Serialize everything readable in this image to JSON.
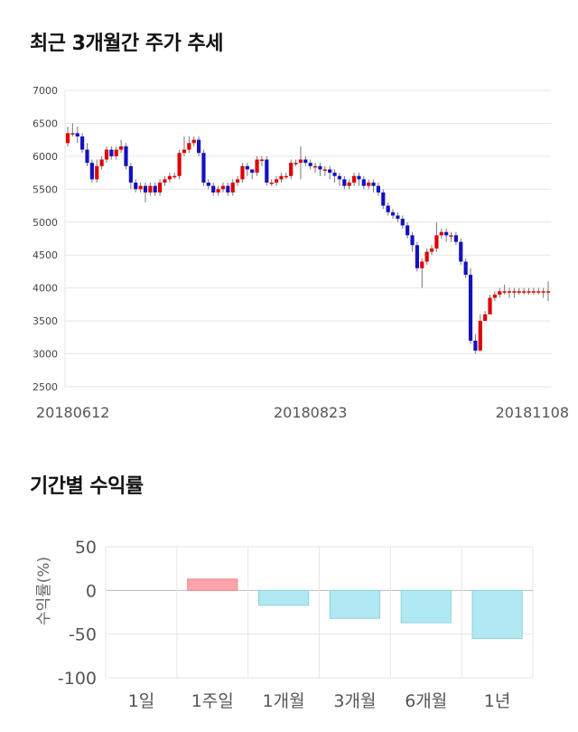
{
  "titles": {
    "price_trend": "최근 3개월간 주가 추세",
    "period_returns": "기간별 수익률"
  },
  "colors": {
    "up": "#e00000",
    "down": "#1212c0",
    "wick": "#777777",
    "positive_bar": "#ffa4a9",
    "negative_bar": "#b0e9f3",
    "grid": "#e6e6e6"
  },
  "chart_data": [
    {
      "type": "candlestick",
      "title": "",
      "ylim": [
        2500,
        7000
      ],
      "y_ticks": [
        "7000",
        "6500",
        "6000",
        "5500",
        "5000",
        "4500",
        "4000",
        "3500",
        "3000",
        "2500"
      ],
      "x_tick_labels": [
        {
          "index": 0,
          "label": "20180612"
        },
        {
          "index": 50,
          "label": "20180823"
        },
        {
          "index": 99,
          "label": "20181108"
        }
      ],
      "closes": [
        6350,
        6350,
        6300,
        6100,
        5900,
        5650,
        5850,
        5950,
        6100,
        6000,
        6100,
        6150,
        5850,
        5600,
        5500,
        5550,
        5450,
        5550,
        5450,
        5600,
        5650,
        5700,
        5700,
        6050,
        6100,
        6200,
        6250,
        6050,
        5600,
        5550,
        5450,
        5500,
        5550,
        5450,
        5600,
        5650,
        5850,
        5800,
        5750,
        5950,
        5950,
        5600,
        5600,
        5650,
        5700,
        5700,
        5900,
        5900,
        5950,
        5900,
        5850,
        5850,
        5800,
        5800,
        5750,
        5700,
        5650,
        5550,
        5600,
        5700,
        5650,
        5550,
        5600,
        5550,
        5450,
        5250,
        5150,
        5100,
        5050,
        4950,
        4800,
        4650,
        4300,
        4400,
        4550,
        4600,
        4800,
        4850,
        4800,
        4800,
        4700,
        4400,
        4200,
        3200,
        3050,
        3500,
        3600,
        3850,
        3900,
        3950,
        3950,
        3950,
        3950,
        3950,
        3950,
        3950,
        3950,
        3950,
        3950,
        3950
      ],
      "opens": [
        6200,
        6350,
        6350,
        6300,
        6100,
        5900,
        5650,
        5850,
        5950,
        6100,
        6000,
        6100,
        6150,
        5850,
        5600,
        5500,
        5550,
        5450,
        5550,
        5450,
        5600,
        5650,
        5700,
        5700,
        6050,
        6100,
        6200,
        6250,
        6050,
        5600,
        5550,
        5450,
        5500,
        5550,
        5450,
        5600,
        5650,
        5850,
        5800,
        5750,
        5950,
        5950,
        5600,
        5600,
        5650,
        5700,
        5700,
        5900,
        5900,
        5950,
        5900,
        5850,
        5850,
        5800,
        5800,
        5750,
        5700,
        5650,
        5550,
        5600,
        5700,
        5650,
        5550,
        5600,
        5550,
        5450,
        5250,
        5150,
        5100,
        5050,
        4950,
        4800,
        4650,
        4300,
        4400,
        4550,
        4600,
        4800,
        4850,
        4800,
        4800,
        4700,
        4400,
        4200,
        3200,
        3050,
        3500,
        3600,
        3850,
        3900,
        3950,
        3950,
        3950,
        3950,
        3950,
        3950,
        3950,
        3950,
        3950,
        3950
      ],
      "highs": [
        6450,
        6500,
        6450,
        6350,
        6200,
        5950,
        5950,
        6000,
        6150,
        6150,
        6150,
        6250,
        6200,
        5900,
        5650,
        5600,
        5600,
        5600,
        5600,
        5650,
        5700,
        5750,
        5750,
        6100,
        6300,
        6300,
        6300,
        6300,
        6100,
        5650,
        5600,
        5550,
        5600,
        5600,
        5650,
        5700,
        5900,
        5900,
        5800,
        6000,
        6000,
        6000,
        5650,
        5700,
        5750,
        5750,
        5950,
        5950,
        6150,
        6000,
        5950,
        5900,
        5900,
        5850,
        5850,
        5800,
        5750,
        5700,
        5650,
        5750,
        5750,
        5700,
        5650,
        5650,
        5600,
        5500,
        5300,
        5200,
        5150,
        5100,
        5000,
        4850,
        4700,
        4450,
        4600,
        4650,
        5000,
        4900,
        4900,
        4850,
        4850,
        4750,
        4450,
        4300,
        3300,
        3600,
        3650,
        3900,
        3950,
        4000,
        4050,
        4000,
        4000,
        4000,
        4000,
        4000,
        4000,
        4000,
        4000,
        4100
      ],
      "lows": [
        6150,
        6300,
        6200,
        6050,
        5850,
        5600,
        5600,
        5800,
        5900,
        5950,
        5950,
        6050,
        5800,
        5500,
        5450,
        5450,
        5300,
        5400,
        5400,
        5400,
        5550,
        5600,
        5650,
        5650,
        6000,
        6050,
        6150,
        6000,
        5550,
        5500,
        5400,
        5400,
        5450,
        5400,
        5400,
        5550,
        5600,
        5700,
        5650,
        5700,
        5850,
        5550,
        5550,
        5550,
        5600,
        5650,
        5650,
        5850,
        5650,
        5850,
        5800,
        5750,
        5700,
        5700,
        5650,
        5600,
        5550,
        5500,
        5500,
        5550,
        5550,
        5500,
        5500,
        5450,
        5400,
        5200,
        5100,
        5050,
        5000,
        4900,
        4750,
        4550,
        4250,
        4000,
        4350,
        4500,
        4550,
        4750,
        4700,
        4700,
        4650,
        4350,
        4150,
        3150,
        3000,
        3100,
        3500,
        3600,
        3800,
        3850,
        3900,
        3850,
        3850,
        3900,
        3900,
        3900,
        3900,
        3900,
        3850,
        3800
      ]
    },
    {
      "type": "bar",
      "title": "",
      "categories": [
        "1일",
        "1주일",
        "1개월",
        "3개월",
        "6개월",
        "1년"
      ],
      "values": [
        0,
        13,
        -17,
        -32,
        -37,
        -55
      ],
      "ylabel": "수익률(%)",
      "ylim": [
        -100,
        50
      ],
      "y_ticks": [
        "50",
        "0",
        "-50",
        "-100"
      ],
      "grid": true
    }
  ]
}
